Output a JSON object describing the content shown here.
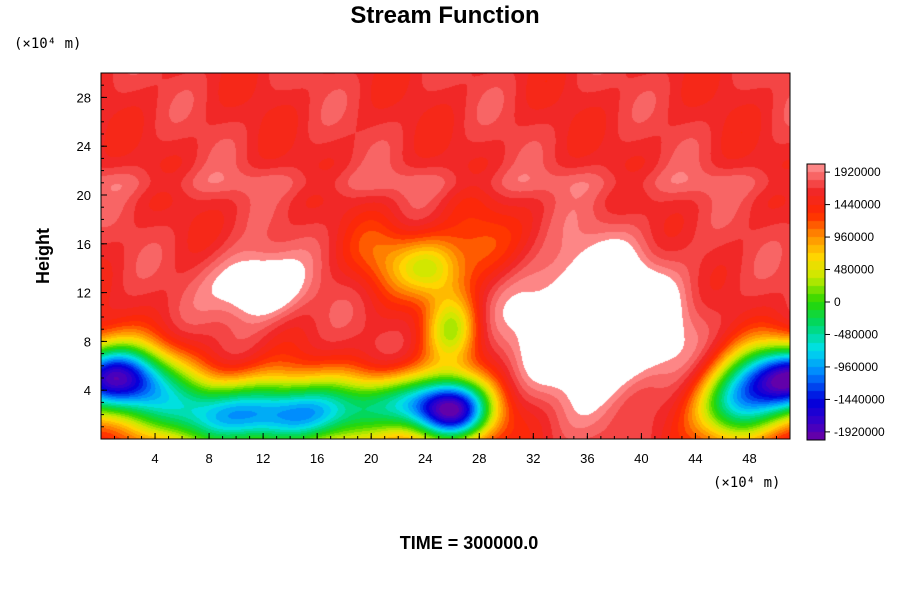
{
  "chart_data": {
    "type": "heatmap",
    "title": "Stream Function",
    "ylabel": "Height",
    "x_unit": "(×10⁴ m)",
    "y_unit": "(×10⁴ m)",
    "xlim": [
      0,
      51
    ],
    "ylim": [
      0,
      30
    ],
    "x_ticks": [
      "4",
      "8",
      "12",
      "16",
      "20",
      "24",
      "28",
      "32",
      "36",
      "40",
      "44",
      "48"
    ],
    "y_ticks": [
      "4",
      "8",
      "12",
      "16",
      "20",
      "24",
      "28"
    ],
    "colorbar": {
      "min": -2040000,
      "max": 2040000,
      "ticks": [
        "1920000",
        "1440000",
        "960000",
        "480000",
        "0",
        "-480000",
        "-960000",
        "-1440000",
        "-1920000"
      ]
    },
    "above_range_color": "#ffffff",
    "background_value": 1650000,
    "features": [
      {
        "kind": "jet",
        "y": 21,
        "value": 260000,
        "y_width": 1.2
      },
      {
        "kind": "low",
        "x": 1,
        "y": 5,
        "value": -3400000,
        "sx": 4,
        "sy": 2.8
      },
      {
        "kind": "low",
        "x": 51,
        "y": 5,
        "value": -3400000,
        "sx": 4,
        "sy": 2.8
      },
      {
        "kind": "low",
        "x": 26,
        "y": 2.3,
        "value": -3200000,
        "sx": 3,
        "sy": 2.6
      },
      {
        "kind": "low",
        "x": 8,
        "y": 2,
        "value": -2000000,
        "sx": 6,
        "sy": 3
      },
      {
        "kind": "low",
        "x": 15,
        "y": 2,
        "value": -2100000,
        "sx": 5,
        "sy": 3
      },
      {
        "kind": "low",
        "x": 22,
        "y": 3,
        "value": -1500000,
        "sx": 4,
        "sy": 2.5
      },
      {
        "kind": "low",
        "x": 47,
        "y": 2.5,
        "value": -2000000,
        "sx": 3,
        "sy": 3
      },
      {
        "kind": "low",
        "x": 26,
        "y": 9,
        "value": -1200000,
        "sx": 2,
        "sy": 3
      },
      {
        "kind": "high",
        "x": 11.5,
        "y": 12.5,
        "value": 900000,
        "sx": 3.2,
        "sy": 2.8
      },
      {
        "kind": "high",
        "x": 37,
        "y": 9.5,
        "value": 1300000,
        "sx": 5.5,
        "sy": 5.5
      },
      {
        "kind": "low",
        "x": 24.5,
        "y": 14,
        "value": -1100000,
        "sx": 2.5,
        "sy": 2.5
      },
      {
        "kind": "low",
        "x": 21,
        "y": 15,
        "value": -500000,
        "sx": 2.5,
        "sy": 3
      },
      {
        "kind": "low",
        "x": 28,
        "y": 16,
        "value": -500000,
        "sx": 2.5,
        "sy": 3
      }
    ],
    "footer": "TIME = 300000.0",
    "grid": false
  }
}
